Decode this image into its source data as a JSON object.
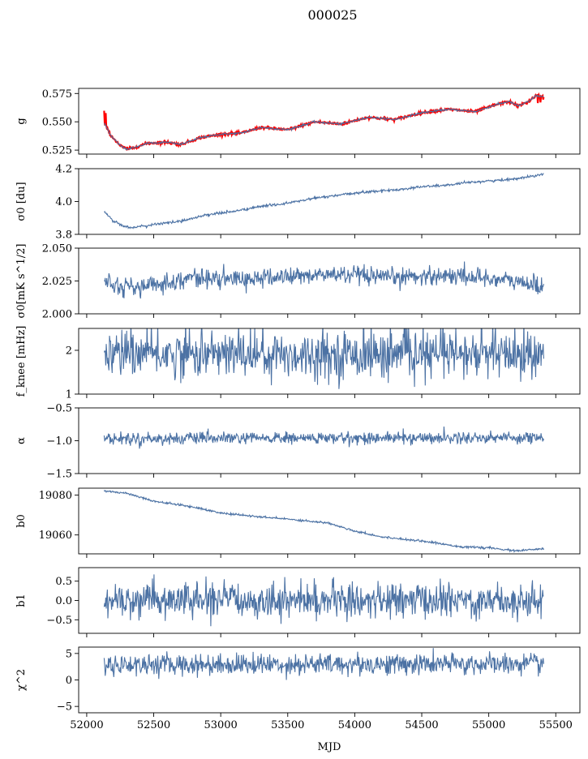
{
  "figure": {
    "title": "000025",
    "xlabel": "MJD"
  },
  "chart_data": {
    "type": "line",
    "xlim": [
      51940,
      55680
    ],
    "xticks": [
      52000,
      52500,
      53000,
      53500,
      54000,
      54500,
      55000,
      55500
    ],
    "series_color": "#4c72a4",
    "reference_color": "#ff0000",
    "panels": [
      {
        "ylabel": "g",
        "ylim": [
          0.5215,
          0.5795
        ],
        "yticks": [
          0.525,
          0.55,
          0.575
        ],
        "ytick_labels": [
          "0.525",
          "0.550",
          "0.575"
        ],
        "noise": 0.0004,
        "has_reference": true,
        "trend": [
          [
            52130,
            0.549
          ],
          [
            52180,
            0.538
          ],
          [
            52250,
            0.529
          ],
          [
            52300,
            0.526
          ],
          [
            52350,
            0.527
          ],
          [
            52450,
            0.531
          ],
          [
            52600,
            0.532
          ],
          [
            52700,
            0.53
          ],
          [
            52850,
            0.536
          ],
          [
            53000,
            0.539
          ],
          [
            53150,
            0.54
          ],
          [
            53300,
            0.545
          ],
          [
            53500,
            0.543
          ],
          [
            53700,
            0.55
          ],
          [
            53900,
            0.548
          ],
          [
            54100,
            0.554
          ],
          [
            54300,
            0.552
          ],
          [
            54500,
            0.558
          ],
          [
            54700,
            0.561
          ],
          [
            54900,
            0.559
          ],
          [
            55050,
            0.565
          ],
          [
            55150,
            0.568
          ],
          [
            55220,
            0.564
          ],
          [
            55300,
            0.568
          ],
          [
            55350,
            0.573
          ],
          [
            55410,
            0.572
          ]
        ]
      },
      {
        "ylabel": "σ0 [du]",
        "ylim": [
          3.8,
          4.2
        ],
        "yticks": [
          3.8,
          4.0,
          4.2
        ],
        "ytick_labels": [
          "3.8",
          "4.0",
          "4.2"
        ],
        "noise": 0.004,
        "trend": [
          [
            52130,
            3.94
          ],
          [
            52200,
            3.88
          ],
          [
            52280,
            3.85
          ],
          [
            52350,
            3.84
          ],
          [
            52500,
            3.86
          ],
          [
            52700,
            3.88
          ],
          [
            52900,
            3.92
          ],
          [
            53100,
            3.94
          ],
          [
            53300,
            3.97
          ],
          [
            53500,
            3.99
          ],
          [
            53700,
            4.02
          ],
          [
            53900,
            4.04
          ],
          [
            54100,
            4.06
          ],
          [
            54300,
            4.07
          ],
          [
            54500,
            4.09
          ],
          [
            54700,
            4.1
          ],
          [
            54900,
            4.12
          ],
          [
            55100,
            4.13
          ],
          [
            55300,
            4.15
          ],
          [
            55410,
            4.17
          ]
        ]
      },
      {
        "ylabel": "σ0[mK s^1/2]",
        "ylim": [
          2.0,
          2.05
        ],
        "yticks": [
          2.0,
          2.025,
          2.05
        ],
        "ytick_labels": [
          "2.000",
          "2.025",
          "2.050"
        ],
        "noise": 0.0035,
        "trend": [
          [
            52130,
            2.027
          ],
          [
            52250,
            2.021
          ],
          [
            52400,
            2.02
          ],
          [
            52600,
            2.024
          ],
          [
            52800,
            2.028
          ],
          [
            53000,
            2.026
          ],
          [
            53300,
            2.027
          ],
          [
            53600,
            2.029
          ],
          [
            53900,
            2.03
          ],
          [
            54200,
            2.027
          ],
          [
            54500,
            2.029
          ],
          [
            54800,
            2.029
          ],
          [
            55100,
            2.026
          ],
          [
            55410,
            2.021
          ]
        ]
      },
      {
        "ylabel": "f_knee [mHz]",
        "ylim": [
          1.0,
          2.5
        ],
        "yticks": [
          1,
          2
        ],
        "ytick_labels": [
          "1",
          "2"
        ],
        "noise": 0.26,
        "trend": [
          [
            52130,
            1.92
          ],
          [
            55410,
            1.88
          ]
        ]
      },
      {
        "ylabel": "α",
        "ylim": [
          -1.5,
          -0.5
        ],
        "yticks": [
          -1.5,
          -1.0,
          -0.5
        ],
        "ytick_labels": [
          "−1.5",
          "−1.0",
          "−0.5"
        ],
        "noise": 0.045,
        "trend": [
          [
            52130,
            -0.97
          ],
          [
            55410,
            -0.95
          ]
        ]
      },
      {
        "ylabel": "b0",
        "ylim": [
          19050.5,
          19083.5
        ],
        "yticks": [
          19060,
          19080
        ],
        "ytick_labels": [
          "19060",
          "19080"
        ],
        "noise": 0.25,
        "trend": [
          [
            52130,
            19082
          ],
          [
            52300,
            19081
          ],
          [
            52500,
            19077
          ],
          [
            52800,
            19074
          ],
          [
            53000,
            19071
          ],
          [
            53300,
            19069
          ],
          [
            53500,
            19068
          ],
          [
            53800,
            19066
          ],
          [
            54000,
            19062
          ],
          [
            54200,
            19059
          ],
          [
            54500,
            19057
          ],
          [
            54800,
            19054
          ],
          [
            55000,
            19053.5
          ],
          [
            55200,
            19052
          ],
          [
            55410,
            19053
          ]
        ]
      },
      {
        "ylabel": "b1",
        "ylim": [
          -0.85,
          0.85
        ],
        "yticks": [
          -0.5,
          0.0,
          0.5
        ],
        "ytick_labels": [
          "−0.5",
          "0.0",
          "0.5"
        ],
        "noise": 0.22,
        "trend": [
          [
            52130,
            0.0
          ],
          [
            55410,
            0.0
          ]
        ]
      },
      {
        "ylabel": "χ^2",
        "ylim": [
          -6.2,
          6.2
        ],
        "yticks": [
          -5,
          0,
          5
        ],
        "ytick_labels": [
          "−5",
          "0",
          "5"
        ],
        "noise": 1.0,
        "trend": [
          [
            52130,
            2.9
          ],
          [
            55410,
            3.0
          ]
        ]
      }
    ]
  }
}
